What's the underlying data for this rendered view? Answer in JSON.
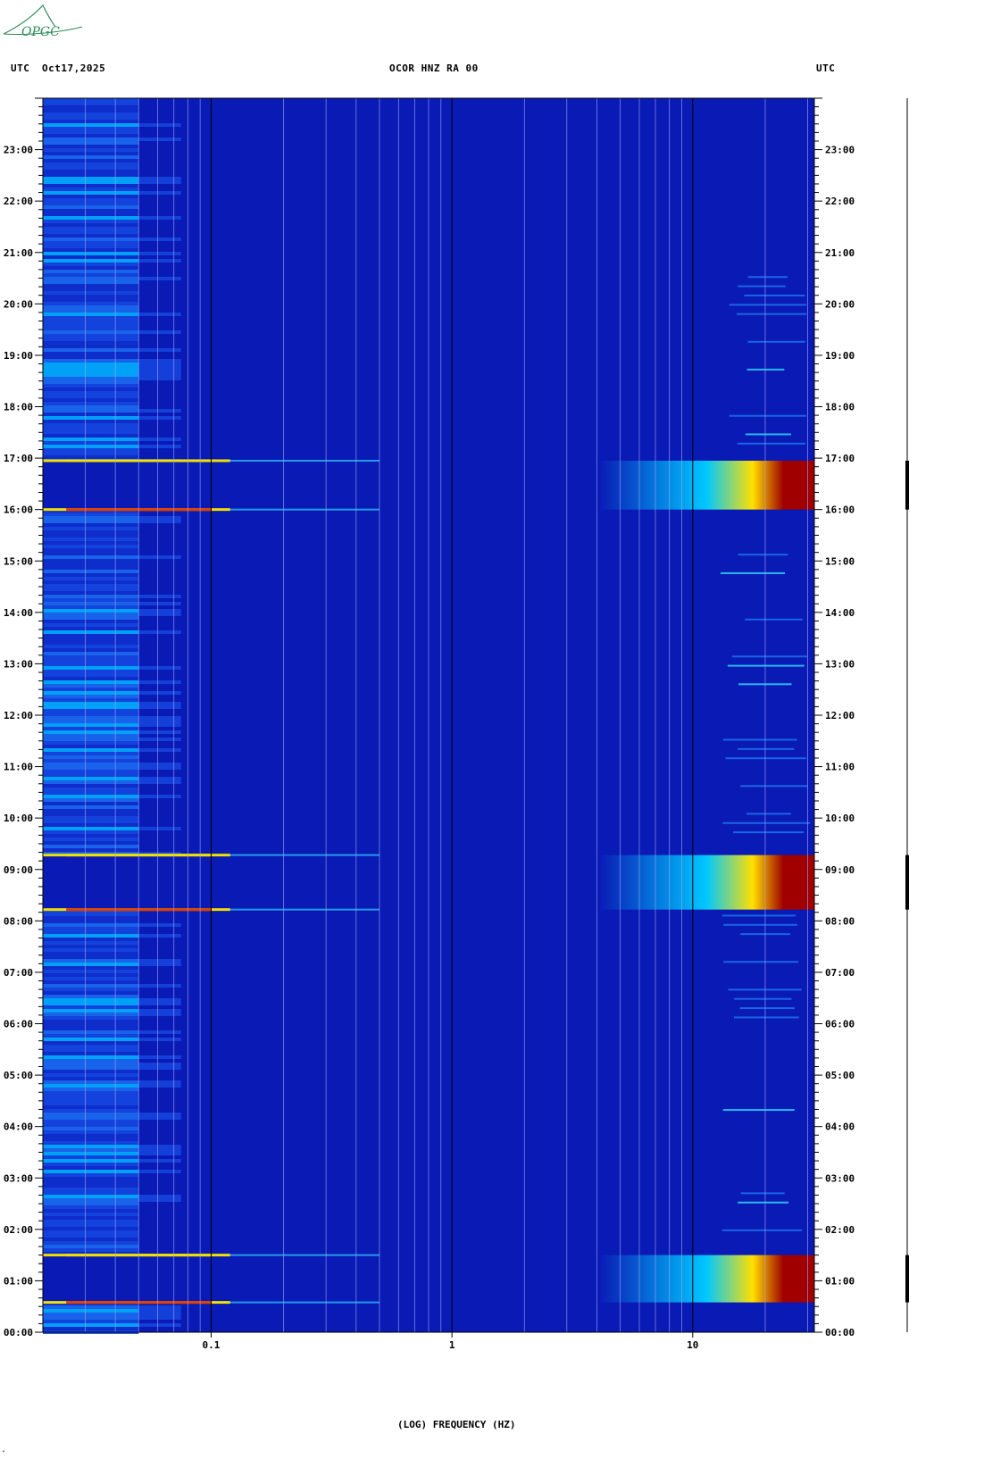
{
  "header": {
    "left_tz": "UTC",
    "date": "Oct17,2025",
    "station": "OCOR HNZ RA 00",
    "right_tz": "UTC"
  },
  "logo": {
    "text": "OPGC",
    "color": "#2e8b57"
  },
  "chart_data": {
    "type": "heatmap",
    "title": "OCOR HNZ RA 00",
    "xlabel": "(LOG) FREQUENCY (HZ)",
    "x_scale": "log",
    "xlim": [
      0.02,
      32
    ],
    "x_ticks": [
      {
        "value": 0.1,
        "label": "0.1"
      },
      {
        "value": 1,
        "label": "1"
      },
      {
        "value": 10,
        "label": "10"
      }
    ],
    "y_ticks": [
      "00:00",
      "01:00",
      "02:00",
      "03:00",
      "04:00",
      "05:00",
      "06:00",
      "07:00",
      "08:00",
      "09:00",
      "10:00",
      "11:00",
      "12:00",
      "13:00",
      "14:00",
      "15:00",
      "16:00",
      "17:00",
      "18:00",
      "19:00",
      "20:00",
      "21:00",
      "22:00",
      "23:00"
    ],
    "ylim_hours": [
      0,
      24
    ],
    "gridlines_hz": [
      0.03,
      0.04,
      0.05,
      0.06,
      0.07,
      0.08,
      0.09,
      0.2,
      0.3,
      0.4,
      0.5,
      0.6,
      0.7,
      0.8,
      0.9,
      2,
      3,
      4,
      5,
      6,
      7,
      8,
      9,
      20,
      30
    ],
    "major_gridlines_hz": [
      0.1,
      1,
      10
    ],
    "background_color": "#0a1ab4",
    "events": [
      {
        "start_hour": 0.58,
        "end_hour": 1.5
      },
      {
        "start_hour": 8.22,
        "end_hour": 9.28
      },
      {
        "start_hour": 16.0,
        "end_hour": 16.95
      }
    ],
    "horizontal_lines_hours": [
      0.58,
      1.5,
      8.22,
      9.28,
      16.0,
      16.95
    ],
    "colors": {
      "low": "#0a1ab4",
      "mid": "#00c8ff",
      "high": "#ffe000",
      "max": "#a00000"
    }
  }
}
